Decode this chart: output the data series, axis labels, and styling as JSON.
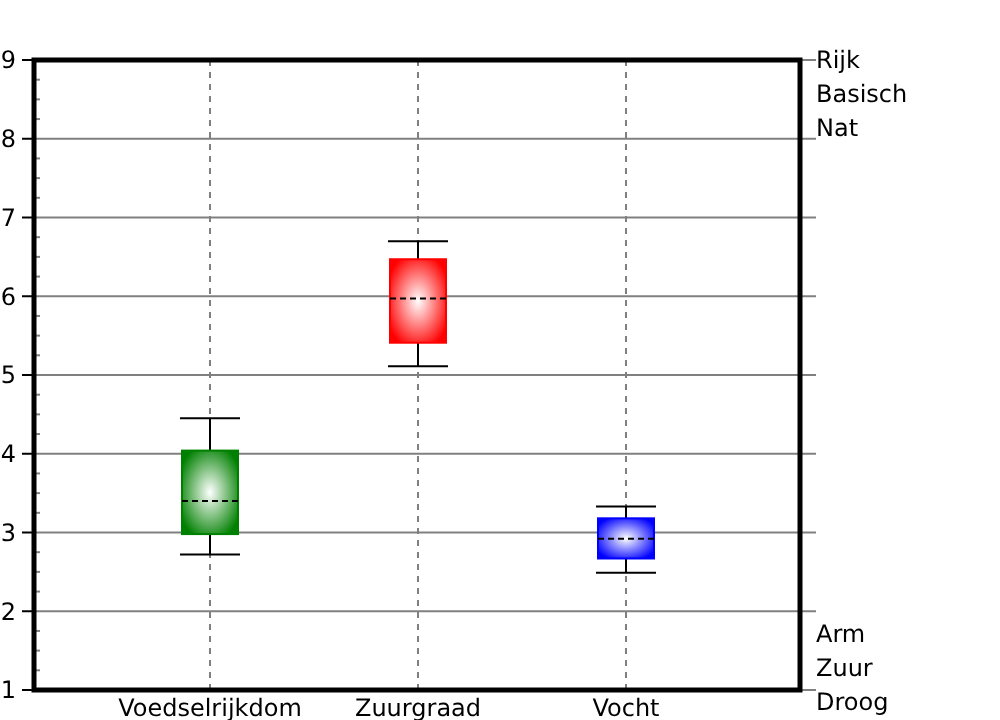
{
  "chart_data": {
    "type": "box",
    "categories": [
      "Voedselrijkdom",
      "Zuurgraad",
      "Vocht"
    ],
    "colors": [
      "#008000",
      "#ff0000",
      "#0000ff"
    ],
    "boxes": [
      {
        "low": 2.72,
        "q1": 2.98,
        "median": 3.4,
        "q3": 4.04,
        "high": 4.45
      },
      {
        "low": 5.11,
        "q1": 5.41,
        "median": 5.97,
        "q3": 6.47,
        "high": 6.7
      },
      {
        "low": 2.49,
        "q1": 2.67,
        "median": 2.92,
        "q3": 3.18,
        "high": 3.33
      }
    ],
    "ylim": [
      1,
      9
    ],
    "yticks": [
      1,
      {
        "value": 1.25,
        "label": null
      },
      {
        "value": 1.5,
        "label": null
      },
      {
        "value": 1.75,
        "label": null
      },
      2,
      {
        "value": 2.25,
        "label": null
      },
      {
        "value": 2.5,
        "label": null
      },
      {
        "value": 2.75,
        "label": null
      },
      3,
      {
        "value": 3.25,
        "label": null
      },
      {
        "value": 3.5,
        "label": null
      },
      {
        "value": 3.75,
        "label": null
      },
      4,
      {
        "value": 4.25,
        "label": null
      },
      {
        "value": 4.5,
        "label": null
      },
      {
        "value": 4.75,
        "label": null
      },
      5,
      {
        "value": 5.25,
        "label": null
      },
      {
        "value": 5.5,
        "label": null
      },
      {
        "value": 5.75,
        "label": null
      },
      6,
      {
        "value": 6.25,
        "label": null
      },
      {
        "value": 6.5,
        "label": null
      },
      {
        "value": 6.75,
        "label": null
      },
      7,
      {
        "value": 7.25,
        "label": null
      },
      {
        "value": 7.5,
        "label": null
      },
      {
        "value": 7.75,
        "label": null
      },
      8,
      {
        "value": 8.25,
        "label": null
      },
      {
        "value": 8.5,
        "label": null
      },
      {
        "value": 8.75,
        "label": null
      },
      9
    ],
    "grid": true,
    "annotations": [
      "Rijk",
      "Basisch",
      "Nat",
      "Arm",
      "Zuur",
      "Droog"
    ]
  }
}
